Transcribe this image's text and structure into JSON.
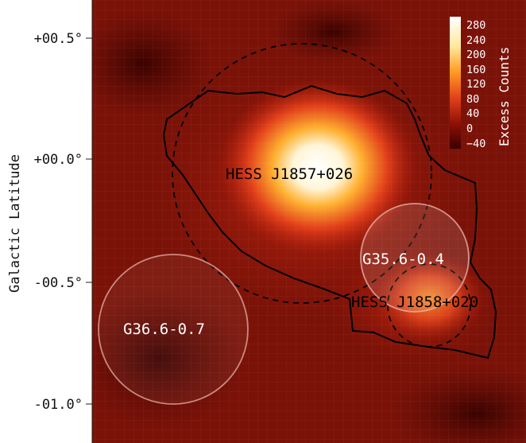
{
  "axis": {
    "ylabel": "Galactic Latitude",
    "yticks": [
      "+00.5°",
      "+00.0°",
      "-00.5°",
      "-01.0°"
    ]
  },
  "colorbar": {
    "label": "Excess Counts",
    "ticks": [
      "280",
      "240",
      "200",
      "160",
      "120",
      "80",
      "40",
      "0",
      "−40"
    ],
    "colors": {
      "top": "#ffffff",
      "mid": "#e8501a",
      "low": "#8b0e05",
      "bottom": "#3a0000"
    }
  },
  "sources": [
    {
      "label": "HESS J1857+026",
      "color": "#000000"
    },
    {
      "label": "HESS J1858+020",
      "color": "#000000"
    },
    {
      "label": "G35.6-0.4",
      "color": "#ffffff"
    },
    {
      "label": "G36.6-0.7",
      "color": "#ffffff"
    }
  ],
  "map": {
    "colormap": "hot",
    "grid": true,
    "background": "#7a1208"
  }
}
